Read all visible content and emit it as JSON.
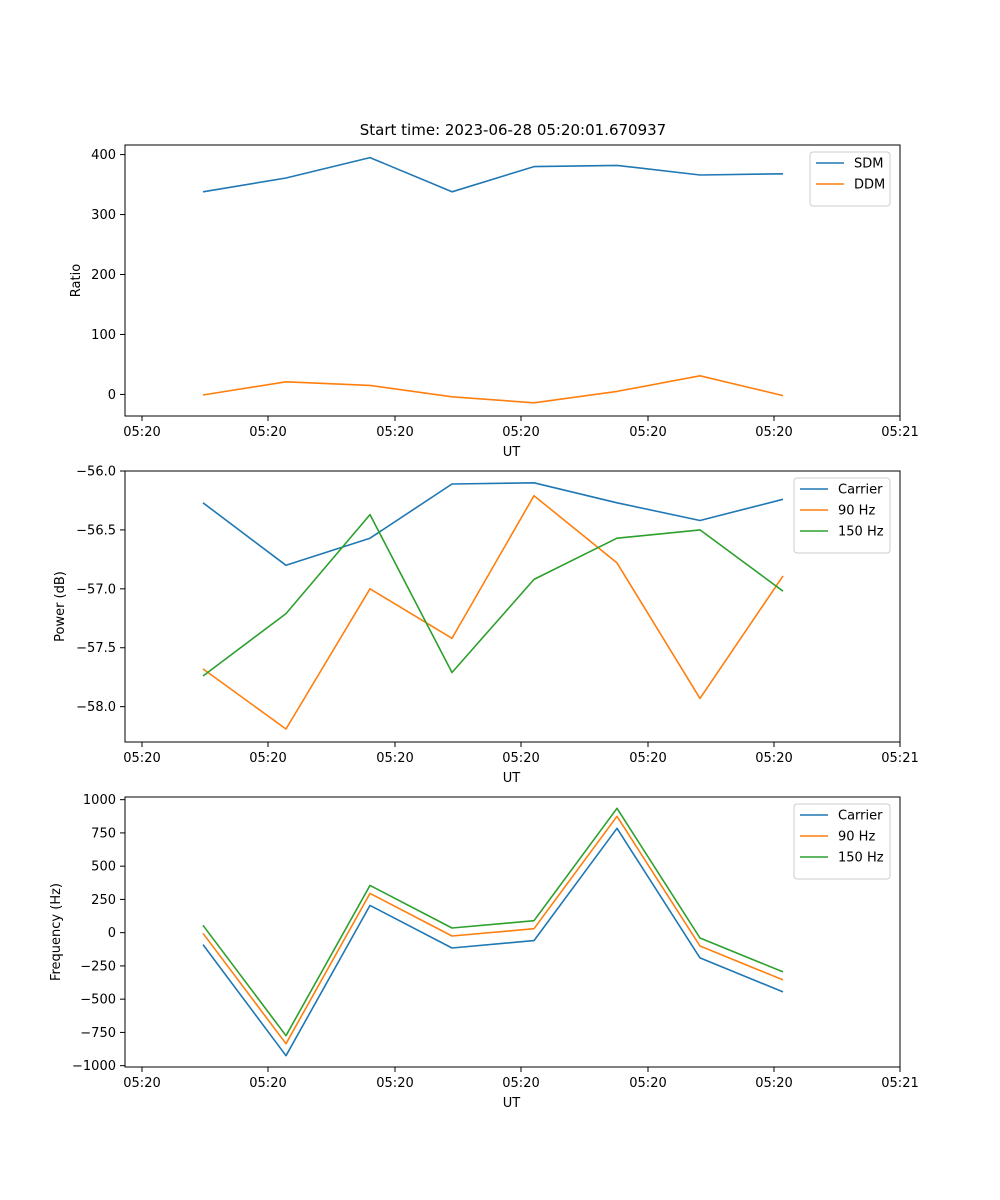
{
  "figure": {
    "title": "Start time: 2023-06-28 05:20:01.670937"
  },
  "colors": {
    "blue": "#1f77b4",
    "orange": "#ff7f0e",
    "green": "#2ca02c"
  },
  "chart_data": [
    {
      "type": "line",
      "title": "Start time: 2023-06-28 05:20:01.670937",
      "xlabel": "UT",
      "ylabel": "Ratio",
      "x_ticks": [
        "05:20",
        "05:20",
        "05:20",
        "05:20",
        "05:20",
        "05:20",
        "05:20",
        "05:21"
      ],
      "y_ticks": [
        0,
        100,
        200,
        300,
        400
      ],
      "ylim": [
        -36,
        416
      ],
      "legend": "top-right",
      "grid": false,
      "series": [
        {
          "name": "SDM",
          "color": "#1f77b4",
          "values": [
            338,
            361,
            395,
            338,
            380,
            382,
            366,
            368
          ]
        },
        {
          "name": "DDM",
          "color": "#ff7f0e",
          "values": [
            -1,
            21,
            15,
            -4,
            -14,
            5,
            31,
            -2
          ]
        }
      ]
    },
    {
      "type": "line",
      "xlabel": "UT",
      "ylabel": "Power (dB)",
      "x_ticks": [
        "05:20",
        "05:20",
        "05:20",
        "05:20",
        "05:20",
        "05:20",
        "05:20",
        "05:21"
      ],
      "y_ticks": [
        -58.0,
        -57.5,
        -57.0,
        -56.5,
        -56.0
      ],
      "ylim": [
        -58.3,
        -56.0
      ],
      "legend": "top-right",
      "grid": false,
      "series": [
        {
          "name": "Carrier",
          "color": "#1f77b4",
          "values": [
            -56.27,
            -56.8,
            -56.57,
            -56.11,
            -56.1,
            -56.27,
            -56.42,
            -56.24
          ]
        },
        {
          "name": "90 Hz",
          "color": "#ff7f0e",
          "values": [
            -57.68,
            -58.19,
            -57.0,
            -57.42,
            -56.21,
            -56.78,
            -57.93,
            -56.89
          ]
        },
        {
          "name": "150 Hz",
          "color": "#2ca02c",
          "values": [
            -57.74,
            -57.21,
            -56.37,
            -57.71,
            -56.92,
            -56.57,
            -56.5,
            -57.02
          ]
        }
      ]
    },
    {
      "type": "line",
      "xlabel": "UT",
      "ylabel": "Frequency (Hz)",
      "x_ticks": [
        "05:20",
        "05:20",
        "05:20",
        "05:20",
        "05:20",
        "05:20",
        "05:20",
        "05:21"
      ],
      "y_ticks": [
        -1000,
        -750,
        -500,
        -250,
        0,
        250,
        500,
        750,
        1000
      ],
      "ylim": [
        -1010,
        1020
      ],
      "legend": "top-right",
      "grid": false,
      "series": [
        {
          "name": "Carrier",
          "color": "#1f77b4",
          "values": [
            -90,
            -925,
            205,
            -115,
            -60,
            785,
            -190,
            -445
          ]
        },
        {
          "name": "90 Hz",
          "color": "#ff7f0e",
          "values": [
            -5,
            -835,
            295,
            -25,
            30,
            875,
            -100,
            -355
          ]
        },
        {
          "name": "150 Hz",
          "color": "#2ca02c",
          "values": [
            55,
            -775,
            355,
            35,
            90,
            935,
            -40,
            -295
          ]
        }
      ]
    }
  ]
}
